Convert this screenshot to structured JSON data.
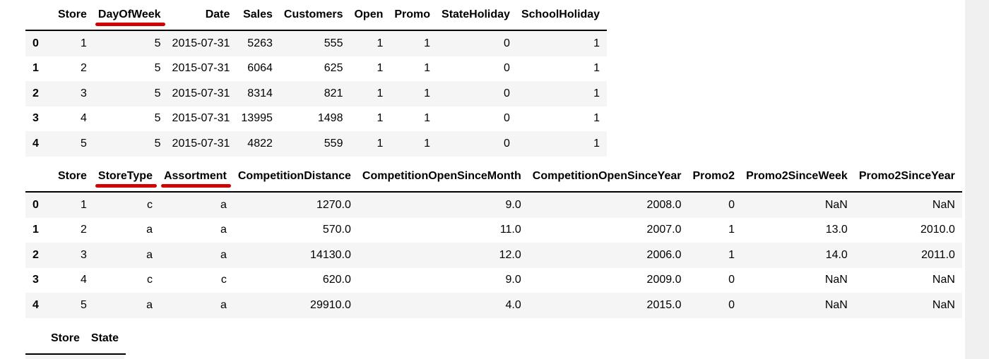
{
  "tables": [
    {
      "columns": [
        "Store",
        "DayOfWeek",
        "Date",
        "Sales",
        "Customers",
        "Open",
        "Promo",
        "StateHoliday",
        "SchoolHoliday"
      ],
      "highlighted": [
        "DayOfWeek"
      ],
      "rows": [
        {
          "index": "0",
          "cells": [
            "1",
            "5",
            "2015-07-31",
            "5263",
            "555",
            "1",
            "1",
            "0",
            "1"
          ]
        },
        {
          "index": "1",
          "cells": [
            "2",
            "5",
            "2015-07-31",
            "6064",
            "625",
            "1",
            "1",
            "0",
            "1"
          ]
        },
        {
          "index": "2",
          "cells": [
            "3",
            "5",
            "2015-07-31",
            "8314",
            "821",
            "1",
            "1",
            "0",
            "1"
          ]
        },
        {
          "index": "3",
          "cells": [
            "4",
            "5",
            "2015-07-31",
            "13995",
            "1498",
            "1",
            "1",
            "0",
            "1"
          ]
        },
        {
          "index": "4",
          "cells": [
            "5",
            "5",
            "2015-07-31",
            "4822",
            "559",
            "1",
            "1",
            "0",
            "1"
          ]
        }
      ]
    },
    {
      "columns": [
        "Store",
        "StoreType",
        "Assortment",
        "CompetitionDistance",
        "CompetitionOpenSinceMonth",
        "CompetitionOpenSinceYear",
        "Promo2",
        "Promo2SinceWeek",
        "Promo2SinceYear"
      ],
      "highlighted": [
        "StoreType",
        "Assortment"
      ],
      "rows": [
        {
          "index": "0",
          "cells": [
            "1",
            "c",
            "a",
            "1270.0",
            "9.0",
            "2008.0",
            "0",
            "NaN",
            "NaN"
          ]
        },
        {
          "index": "1",
          "cells": [
            "2",
            "a",
            "a",
            "570.0",
            "11.0",
            "2007.0",
            "1",
            "13.0",
            "2010.0"
          ]
        },
        {
          "index": "2",
          "cells": [
            "3",
            "a",
            "a",
            "14130.0",
            "12.0",
            "2006.0",
            "1",
            "14.0",
            "2011.0"
          ]
        },
        {
          "index": "3",
          "cells": [
            "4",
            "c",
            "c",
            "620.0",
            "9.0",
            "2009.0",
            "0",
            "NaN",
            "NaN"
          ]
        },
        {
          "index": "4",
          "cells": [
            "5",
            "a",
            "a",
            "29910.0",
            "4.0",
            "2015.0",
            "0",
            "NaN",
            "NaN"
          ]
        }
      ]
    },
    {
      "columns": [
        "Store",
        "State"
      ],
      "highlighted": [],
      "rows": []
    }
  ],
  "colors": {
    "highlight_mark": "#d20000",
    "row_stripe": "#f5f5f5"
  }
}
